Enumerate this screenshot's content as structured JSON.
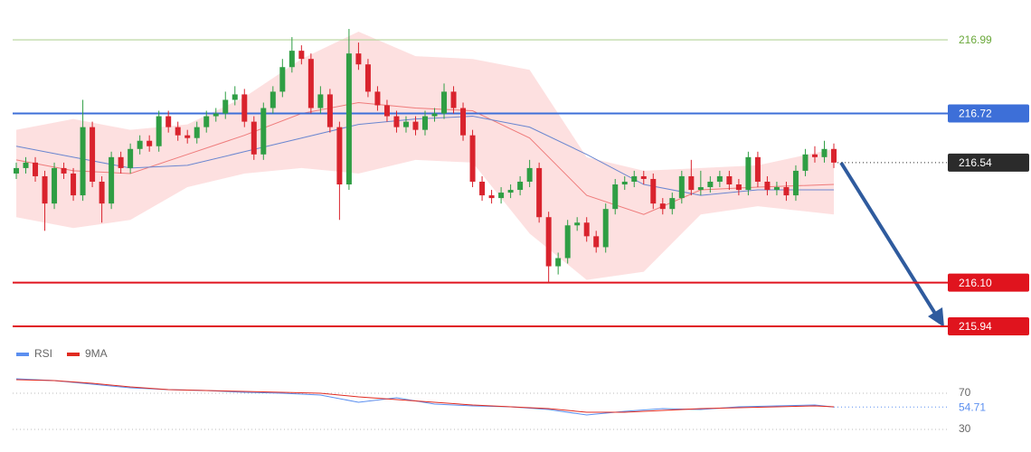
{
  "chart_data": {
    "type": "candlestick",
    "ylim": [
      215.91,
      217.136
    ],
    "candles": {
      "up_color": "#2f9e44",
      "down_color": "#d9232d",
      "open": [
        216.5,
        216.52,
        216.54,
        216.49,
        216.39,
        216.52,
        216.5,
        216.42,
        216.67,
        216.47,
        216.39,
        216.56,
        216.52,
        216.59,
        216.62,
        216.6,
        216.71,
        216.67,
        216.64,
        216.63,
        216.67,
        216.71,
        216.72,
        216.77,
        216.79,
        216.69,
        216.57,
        216.74,
        216.8,
        216.89,
        216.95,
        216.92,
        216.74,
        216.79,
        216.67,
        216.46,
        216.94,
        216.9,
        216.8,
        216.75,
        216.71,
        216.67,
        216.69,
        216.66,
        216.71,
        216.72,
        216.8,
        216.74,
        216.64,
        216.47,
        216.42,
        216.41,
        216.43,
        216.44,
        216.47,
        216.52,
        216.34,
        216.16,
        216.19,
        216.31,
        216.32,
        216.27,
        216.23,
        216.37,
        216.46,
        216.47,
        216.49,
        216.48,
        216.39,
        216.37,
        216.41,
        216.49,
        216.44,
        216.45,
        216.47,
        216.49,
        216.46,
        216.44,
        216.56,
        216.47,
        216.44,
        216.45,
        216.42,
        216.51,
        216.57,
        216.56,
        216.59
      ],
      "high": [
        216.54,
        216.56,
        216.56,
        216.51,
        216.54,
        216.54,
        216.52,
        216.77,
        216.69,
        216.49,
        216.58,
        216.58,
        216.61,
        216.64,
        216.64,
        216.73,
        216.73,
        216.69,
        216.66,
        216.69,
        216.73,
        216.74,
        216.8,
        216.82,
        216.81,
        216.71,
        216.76,
        216.82,
        216.92,
        217.0,
        216.97,
        216.94,
        216.82,
        216.81,
        216.69,
        217.03,
        216.98,
        216.92,
        216.82,
        216.77,
        216.73,
        216.71,
        216.71,
        216.73,
        216.74,
        216.83,
        216.82,
        216.76,
        216.66,
        216.49,
        216.44,
        216.45,
        216.46,
        216.49,
        216.55,
        216.54,
        216.36,
        216.21,
        216.33,
        216.34,
        216.34,
        216.29,
        216.39,
        216.48,
        216.49,
        216.51,
        216.51,
        216.5,
        216.41,
        216.43,
        216.51,
        216.55,
        216.51,
        216.49,
        216.51,
        216.51,
        216.48,
        216.58,
        216.58,
        216.49,
        216.47,
        216.47,
        216.53,
        216.59,
        216.6,
        216.62,
        216.61
      ],
      "low": [
        216.48,
        216.5,
        216.47,
        216.29,
        216.37,
        216.48,
        216.4,
        216.4,
        216.45,
        216.32,
        216.37,
        216.5,
        216.5,
        216.57,
        216.58,
        216.58,
        216.65,
        216.62,
        216.61,
        216.61,
        216.65,
        216.69,
        216.7,
        216.75,
        216.67,
        216.55,
        216.55,
        216.72,
        216.78,
        216.87,
        216.9,
        216.72,
        216.72,
        216.65,
        216.33,
        216.44,
        216.88,
        216.78,
        216.73,
        216.69,
        216.65,
        216.65,
        216.64,
        216.64,
        216.69,
        216.7,
        216.72,
        216.62,
        216.45,
        216.4,
        216.39,
        216.39,
        216.41,
        216.42,
        216.45,
        216.32,
        216.1,
        216.13,
        216.17,
        216.29,
        216.25,
        216.21,
        216.21,
        216.35,
        216.44,
        216.45,
        216.46,
        216.37,
        216.35,
        216.35,
        216.39,
        216.42,
        216.42,
        216.43,
        216.45,
        216.44,
        216.42,
        216.42,
        216.45,
        216.42,
        216.42,
        216.4,
        216.4,
        216.49,
        216.54,
        216.54,
        216.52
      ],
      "close": [
        216.52,
        216.54,
        216.49,
        216.39,
        216.52,
        216.5,
        216.42,
        216.67,
        216.47,
        216.39,
        216.56,
        216.52,
        216.59,
        216.62,
        216.6,
        216.71,
        216.67,
        216.64,
        216.63,
        216.67,
        216.71,
        216.72,
        216.77,
        216.79,
        216.69,
        216.57,
        216.74,
        216.8,
        216.89,
        216.95,
        216.92,
        216.74,
        216.79,
        216.67,
        216.46,
        216.94,
        216.9,
        216.8,
        216.75,
        216.71,
        216.67,
        216.69,
        216.66,
        216.71,
        216.72,
        216.8,
        216.74,
        216.64,
        216.47,
        216.42,
        216.41,
        216.43,
        216.44,
        216.47,
        216.52,
        216.34,
        216.16,
        216.19,
        216.31,
        216.32,
        216.27,
        216.23,
        216.37,
        216.46,
        216.47,
        216.49,
        216.48,
        216.39,
        216.37,
        216.41,
        216.49,
        216.44,
        216.45,
        216.47,
        216.49,
        216.46,
        216.44,
        216.56,
        216.47,
        216.44,
        216.45,
        216.42,
        216.51,
        216.57,
        216.56,
        216.59,
        216.54
      ]
    },
    "bands": {
      "fill": "#fcd6d6",
      "middle_color": "#ef7b7b",
      "slow_color": "#6a86d0",
      "x": [
        0,
        6,
        12,
        18,
        24,
        30,
        36,
        42,
        48,
        54,
        60,
        66,
        72,
        78,
        86
      ],
      "upper": [
        216.66,
        216.7,
        216.66,
        216.68,
        216.78,
        216.92,
        217.02,
        216.93,
        216.92,
        216.88,
        216.56,
        216.51,
        216.52,
        216.53,
        216.59
      ],
      "lower": [
        216.34,
        216.3,
        216.33,
        216.45,
        216.5,
        216.52,
        216.5,
        216.55,
        216.54,
        216.28,
        216.11,
        216.14,
        216.35,
        216.38,
        216.35
      ],
      "middle": [
        216.55,
        216.51,
        216.5,
        216.57,
        216.64,
        216.72,
        216.76,
        216.74,
        216.73,
        216.63,
        216.42,
        216.35,
        216.44,
        216.45,
        216.46
      ],
      "slow_ma": [
        216.6,
        216.56,
        216.52,
        216.53,
        216.58,
        216.63,
        216.68,
        216.7,
        216.71,
        216.67,
        216.57,
        216.46,
        216.42,
        216.44,
        216.44
      ]
    },
    "levels": [
      {
        "value": 216.99,
        "color": "#b5d39a",
        "text_color": "#6aa83a",
        "style": "text"
      },
      {
        "value": 216.72,
        "color": "#3d6fd8",
        "text_color": "#ffffff",
        "style": "box"
      },
      {
        "value": 216.1,
        "label": "216.10",
        "color": "#e0141e",
        "text_color": "#ffffff",
        "style": "box"
      },
      {
        "value": 215.94,
        "color": "#e0141e",
        "text_color": "#ffffff",
        "style": "box"
      }
    ],
    "current_color": "#2b2b2b",
    "rsi": {
      "ylim": [
        5,
        105
      ],
      "yticks": [
        70,
        30
      ],
      "x": [
        0,
        4,
        8,
        12,
        16,
        20,
        24,
        28,
        32,
        36,
        40,
        44,
        48,
        52,
        56,
        60,
        64,
        68,
        72,
        76,
        80,
        84,
        86
      ],
      "series": [
        {
          "name": "RSI",
          "color": "#5b8ff0",
          "values": [
            86,
            84,
            80,
            76,
            74,
            73,
            71,
            70,
            68,
            60,
            65,
            58,
            56,
            55,
            52,
            46,
            50,
            53,
            52,
            55,
            56,
            57,
            54.71
          ]
        },
        {
          "name": "9MA",
          "color": "#e02a20",
          "values": [
            85,
            84,
            81,
            77,
            74,
            73,
            72,
            71,
            70,
            66,
            63,
            60,
            57,
            55,
            53,
            49,
            49,
            51,
            53,
            54,
            55,
            56,
            55
          ]
        }
      ]
    }
  }
}
